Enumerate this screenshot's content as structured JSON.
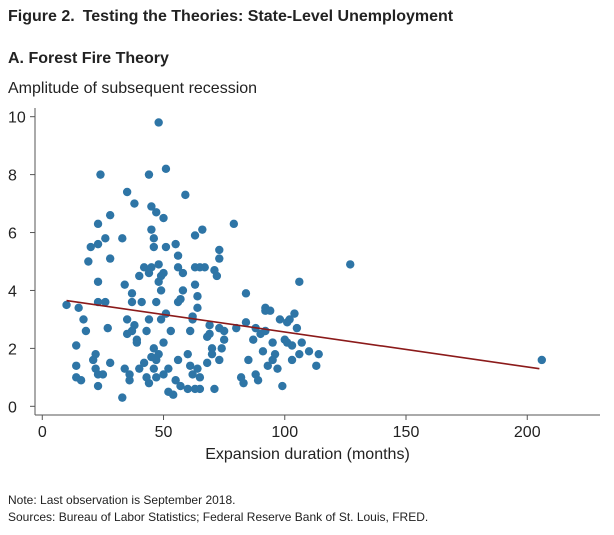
{
  "figure": {
    "number": "Figure 2.",
    "title": "Testing the Theories: State-Level Unemployment"
  },
  "notes": [
    "Note: Last observation is September 2018.",
    "Sources: Bureau of Labor Statistics; Federal Reserve Bank of St. Louis, FRED."
  ],
  "colors": {
    "points": "#2e75a6",
    "trend": "#8b1a1a",
    "axis": "#555555",
    "text": "#222222"
  },
  "chart_data": {
    "type": "scatter",
    "title": "A. Forest Fire Theory",
    "ylabel": "Amplitude of subsequent recession",
    "xlabel": "Expansion duration (months)",
    "xlim": [
      -3,
      230
    ],
    "ylim": [
      -0.3,
      10.3
    ],
    "xticks": [
      0,
      50,
      100,
      150,
      200
    ],
    "yticks": [
      0,
      2,
      4,
      6,
      8,
      10
    ],
    "grid": false,
    "points": [
      [
        10,
        3.5
      ],
      [
        15,
        3.4
      ],
      [
        14,
        2.1
      ],
      [
        14,
        1.4
      ],
      [
        14,
        1.0
      ],
      [
        16,
        0.9
      ],
      [
        17,
        3.0
      ],
      [
        18,
        2.6
      ],
      [
        19,
        5.0
      ],
      [
        20,
        5.5
      ],
      [
        21,
        1.6
      ],
      [
        22,
        1.3
      ],
      [
        22,
        1.8
      ],
      [
        23,
        6.3
      ],
      [
        23,
        5.6
      ],
      [
        23,
        4.3
      ],
      [
        23,
        3.6
      ],
      [
        23,
        1.1
      ],
      [
        23,
        0.7
      ],
      [
        24,
        8.0
      ],
      [
        25,
        1.1
      ],
      [
        26,
        3.6
      ],
      [
        26,
        5.8
      ],
      [
        27,
        2.7
      ],
      [
        28,
        5.1
      ],
      [
        28,
        6.6
      ],
      [
        28,
        1.5
      ],
      [
        33,
        0.3
      ],
      [
        33,
        5.8
      ],
      [
        34,
        4.2
      ],
      [
        34,
        1.3
      ],
      [
        35,
        7.4
      ],
      [
        35,
        3.0
      ],
      [
        35,
        2.5
      ],
      [
        36,
        1.1
      ],
      [
        36,
        0.9
      ],
      [
        37,
        3.9
      ],
      [
        37,
        3.6
      ],
      [
        37,
        2.6
      ],
      [
        38,
        7.0
      ],
      [
        38,
        2.8
      ],
      [
        39,
        2.3
      ],
      [
        39,
        2.2
      ],
      [
        40,
        4.5
      ],
      [
        40,
        1.3
      ],
      [
        41,
        3.6
      ],
      [
        42,
        4.8
      ],
      [
        42,
        1.5
      ],
      [
        43,
        2.6
      ],
      [
        43,
        1.0
      ],
      [
        44,
        8.0
      ],
      [
        44,
        4.6
      ],
      [
        44,
        3.0
      ],
      [
        44,
        0.8
      ],
      [
        45,
        6.9
      ],
      [
        45,
        6.1
      ],
      [
        45,
        4.8
      ],
      [
        45,
        1.7
      ],
      [
        46,
        5.8
      ],
      [
        46,
        5.5
      ],
      [
        46,
        2.0
      ],
      [
        46,
        1.3
      ],
      [
        47,
        6.7
      ],
      [
        47,
        3.6
      ],
      [
        47,
        1.6
      ],
      [
        47,
        1.0
      ],
      [
        48,
        9.8
      ],
      [
        48,
        4.9
      ],
      [
        48,
        4.3
      ],
      [
        48,
        1.8
      ],
      [
        49,
        4.5
      ],
      [
        49,
        4.0
      ],
      [
        49,
        3.0
      ],
      [
        50,
        6.5
      ],
      [
        50,
        4.6
      ],
      [
        50,
        2.2
      ],
      [
        50,
        1.1
      ],
      [
        51,
        8.2
      ],
      [
        51,
        5.5
      ],
      [
        51,
        3.2
      ],
      [
        52,
        1.3
      ],
      [
        52,
        0.5
      ],
      [
        53,
        2.6
      ],
      [
        54,
        0.4
      ],
      [
        55,
        0.9
      ],
      [
        55,
        5.6
      ],
      [
        56,
        5.2
      ],
      [
        56,
        4.8
      ],
      [
        56,
        3.6
      ],
      [
        56,
        1.6
      ],
      [
        57,
        3.7
      ],
      [
        57,
        0.7
      ],
      [
        58,
        4.6
      ],
      [
        58,
        4.0
      ],
      [
        59,
        7.3
      ],
      [
        60,
        0.6
      ],
      [
        60,
        1.8
      ],
      [
        61,
        2.6
      ],
      [
        61,
        1.4
      ],
      [
        62,
        3.1
      ],
      [
        62,
        3.0
      ],
      [
        62,
        1.1
      ],
      [
        63,
        0.6
      ],
      [
        63,
        5.9
      ],
      [
        63,
        4.8
      ],
      [
        63,
        4.2
      ],
      [
        64,
        3.8
      ],
      [
        64,
        1.3
      ],
      [
        64,
        3.4
      ],
      [
        65,
        4.8
      ],
      [
        65,
        1.0
      ],
      [
        65,
        0.6
      ],
      [
        66,
        6.1
      ],
      [
        67,
        4.8
      ],
      [
        68,
        2.4
      ],
      [
        68,
        1.5
      ],
      [
        69,
        2.8
      ],
      [
        69,
        2.5
      ],
      [
        70,
        2.0
      ],
      [
        70,
        1.8
      ],
      [
        71,
        4.7
      ],
      [
        71,
        0.6
      ],
      [
        72,
        4.5
      ],
      [
        73,
        5.4
      ],
      [
        73,
        5.1
      ],
      [
        73,
        2.7
      ],
      [
        73,
        1.6
      ],
      [
        74,
        2.0
      ],
      [
        75,
        2.6
      ],
      [
        75,
        2.3
      ],
      [
        79,
        6.3
      ],
      [
        80,
        2.7
      ],
      [
        82,
        1.0
      ],
      [
        83,
        0.8
      ],
      [
        84,
        3.9
      ],
      [
        84,
        2.9
      ],
      [
        85,
        1.6
      ],
      [
        87,
        2.3
      ],
      [
        88,
        2.7
      ],
      [
        88,
        1.1
      ],
      [
        89,
        0.9
      ],
      [
        90,
        2.5
      ],
      [
        91,
        1.9
      ],
      [
        92,
        3.4
      ],
      [
        92,
        3.3
      ],
      [
        92,
        2.6
      ],
      [
        93,
        1.4
      ],
      [
        94,
        3.3
      ],
      [
        95,
        2.2
      ],
      [
        95,
        1.6
      ],
      [
        96,
        1.8
      ],
      [
        97,
        1.3
      ],
      [
        98,
        3.0
      ],
      [
        99,
        0.7
      ],
      [
        100,
        2.3
      ],
      [
        101,
        2.2
      ],
      [
        101,
        2.9
      ],
      [
        102,
        3.0
      ],
      [
        103,
        1.6
      ],
      [
        103,
        2.1
      ],
      [
        104,
        3.2
      ],
      [
        105,
        2.7
      ],
      [
        106,
        4.3
      ],
      [
        106,
        1.8
      ],
      [
        107,
        2.2
      ],
      [
        110,
        1.9
      ],
      [
        113,
        1.4
      ],
      [
        114,
        1.8
      ],
      [
        127,
        4.9
      ],
      [
        206,
        1.6
      ]
    ],
    "trendline": [
      [
        10,
        3.65
      ],
      [
        205,
        1.3
      ]
    ]
  }
}
